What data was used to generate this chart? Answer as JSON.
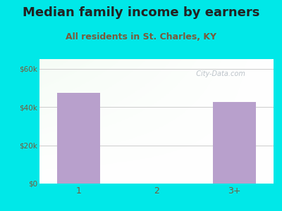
{
  "title": "Median family income by earners",
  "subtitle": "All residents in St. Charles, KY",
  "categories": [
    "1",
    "2",
    "3+"
  ],
  "values": [
    47500,
    0,
    42500
  ],
  "bar_color": "#b8a0cc",
  "background_color": "#00e8e8",
  "yticks": [
    0,
    20000,
    40000,
    60000
  ],
  "ytick_labels": [
    "$0",
    "$20k",
    "$40k",
    "$60k"
  ],
  "ylim": [
    0,
    65000
  ],
  "xlim": [
    0.5,
    3.5
  ],
  "title_fontsize": 13,
  "subtitle_fontsize": 9,
  "subtitle_color": "#7a5a3a",
  "tick_color": "#7a5a3a",
  "watermark_text": "  City-Data.com",
  "watermark_color": "#b0b8c0"
}
